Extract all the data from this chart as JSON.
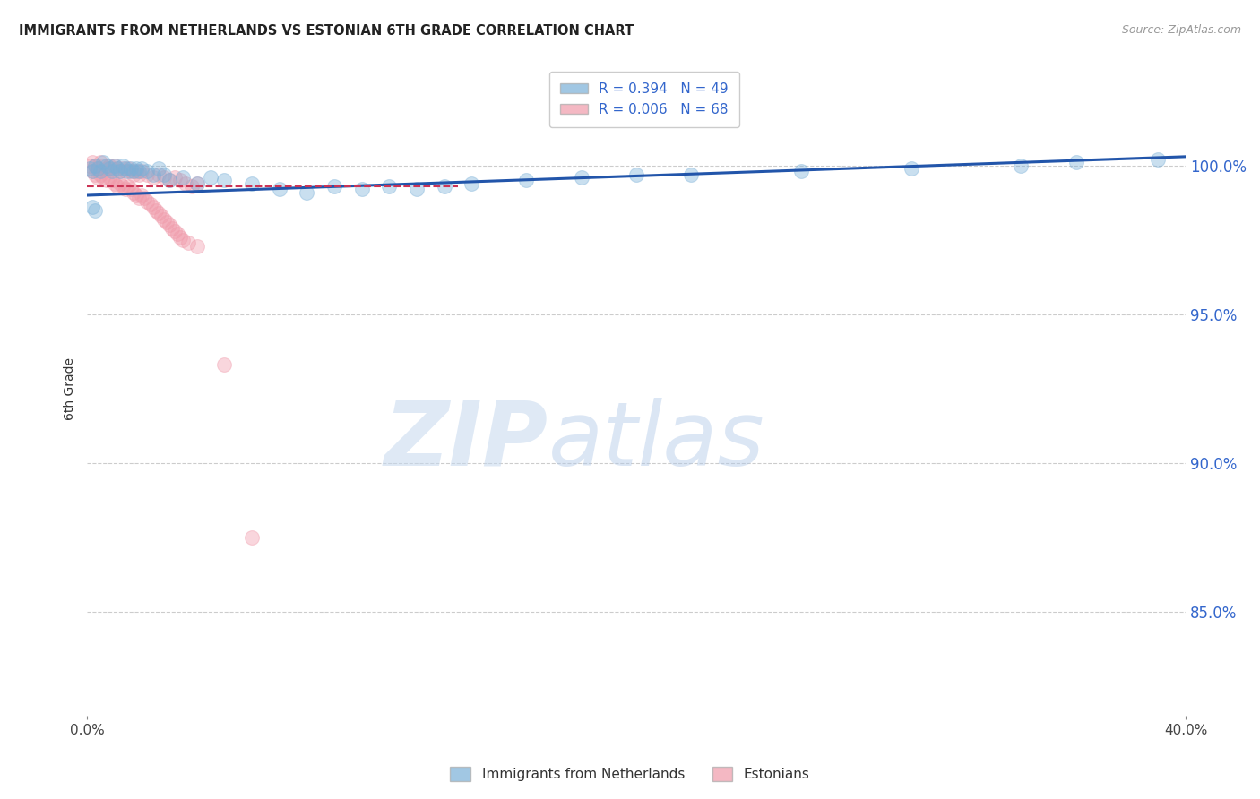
{
  "title": "IMMIGRANTS FROM NETHERLANDS VS ESTONIAN 6TH GRADE CORRELATION CHART",
  "source": "Source: ZipAtlas.com",
  "ylabel": "6th Grade",
  "yaxis_labels": [
    "100.0%",
    "95.0%",
    "90.0%",
    "85.0%"
  ],
  "yaxis_values": [
    1.0,
    0.95,
    0.9,
    0.85
  ],
  "xmin": 0.0,
  "xmax": 0.4,
  "ymin": 0.815,
  "ymax": 1.035,
  "legend_entry1": "R = 0.394   N = 49",
  "legend_entry2": "R = 0.006   N = 68",
  "blue_color": "#7ab0d8",
  "pink_color": "#f09aaa",
  "line_blue": "#2255aa",
  "line_pink": "#cc3355",
  "blue_dots_x": [
    0.001,
    0.002,
    0.003,
    0.004,
    0.005,
    0.006,
    0.007,
    0.008,
    0.009,
    0.01,
    0.011,
    0.012,
    0.013,
    0.014,
    0.015,
    0.016,
    0.017,
    0.018,
    0.019,
    0.02,
    0.022,
    0.024,
    0.026,
    0.028,
    0.03,
    0.035,
    0.04,
    0.045,
    0.05,
    0.06,
    0.07,
    0.08,
    0.09,
    0.1,
    0.11,
    0.12,
    0.13,
    0.14,
    0.16,
    0.18,
    0.2,
    0.22,
    0.26,
    0.3,
    0.34,
    0.36,
    0.39,
    0.002,
    0.003
  ],
  "blue_dots_y": [
    0.999,
    0.998,
    1.0,
    0.999,
    0.998,
    1.001,
    1.0,
    0.999,
    0.998,
    1.0,
    0.999,
    0.998,
    1.0,
    0.999,
    0.998,
    0.999,
    0.998,
    0.999,
    0.998,
    0.999,
    0.998,
    0.997,
    0.999,
    0.997,
    0.995,
    0.996,
    0.994,
    0.996,
    0.995,
    0.994,
    0.992,
    0.991,
    0.993,
    0.992,
    0.993,
    0.992,
    0.993,
    0.994,
    0.995,
    0.996,
    0.997,
    0.997,
    0.998,
    0.999,
    1.0,
    1.001,
    1.002,
    0.986,
    0.985
  ],
  "pink_dots_x": [
    0.001,
    0.002,
    0.003,
    0.004,
    0.005,
    0.006,
    0.007,
    0.008,
    0.009,
    0.01,
    0.011,
    0.012,
    0.013,
    0.014,
    0.015,
    0.016,
    0.017,
    0.018,
    0.019,
    0.02,
    0.022,
    0.024,
    0.026,
    0.028,
    0.03,
    0.032,
    0.034,
    0.036,
    0.038,
    0.04,
    0.002,
    0.003,
    0.004,
    0.005,
    0.006,
    0.007,
    0.008,
    0.009,
    0.01,
    0.011,
    0.012,
    0.013,
    0.014,
    0.015,
    0.016,
    0.017,
    0.018,
    0.019,
    0.02,
    0.021,
    0.022,
    0.023,
    0.024,
    0.025,
    0.026,
    0.027,
    0.028,
    0.029,
    0.03,
    0.031,
    0.032,
    0.033,
    0.034,
    0.035,
    0.037,
    0.04,
    0.05,
    0.06
  ],
  "pink_dots_y": [
    1.0,
    1.001,
    1.0,
    0.999,
    1.001,
    1.0,
    0.999,
    1.0,
    0.999,
    1.0,
    0.999,
    0.998,
    0.999,
    0.998,
    0.999,
    0.998,
    0.997,
    0.998,
    0.997,
    0.998,
    0.997,
    0.996,
    0.997,
    0.996,
    0.995,
    0.996,
    0.995,
    0.994,
    0.993,
    0.994,
    0.998,
    0.997,
    0.996,
    0.997,
    0.996,
    0.995,
    0.996,
    0.995,
    0.994,
    0.993,
    0.994,
    0.993,
    0.992,
    0.993,
    0.992,
    0.991,
    0.99,
    0.989,
    0.99,
    0.989,
    0.988,
    0.987,
    0.986,
    0.985,
    0.984,
    0.983,
    0.982,
    0.981,
    0.98,
    0.979,
    0.978,
    0.977,
    0.976,
    0.975,
    0.974,
    0.973,
    0.933,
    0.875
  ],
  "blue_line_x": [
    0.0,
    0.4
  ],
  "blue_line_y": [
    0.99,
    1.003
  ],
  "pink_line_x": [
    0.0,
    0.135
  ],
  "pink_line_y": [
    0.993,
    0.993
  ],
  "watermark_zip": "ZIP",
  "watermark_atlas": "atlas",
  "dot_size": 130,
  "dot_alpha": 0.4
}
